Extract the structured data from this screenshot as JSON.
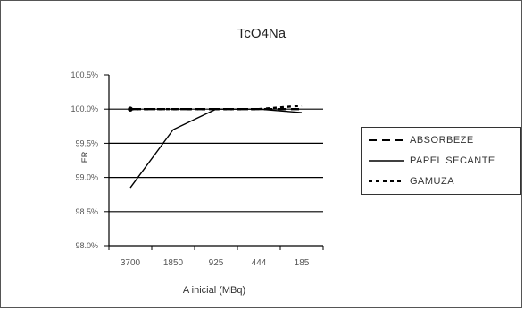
{
  "chart_data": {
    "type": "line",
    "title": "TcO4Na",
    "xlabel": "A inicial (MBq)",
    "ylabel": "ER",
    "categories": [
      "3700",
      "1850",
      "925",
      "444",
      "185"
    ],
    "y_ticks": [
      "100.5%",
      "100.0%",
      "99.5%",
      "99.0%",
      "98.5%",
      "98.0%"
    ],
    "ylim": [
      98.0,
      100.5
    ],
    "grid": true,
    "legend_position": "right",
    "series": [
      {
        "name": "ABSORBEZE",
        "style": "long-dash",
        "color": "#000000",
        "values": [
          100.0,
          100.0,
          100.0,
          100.0,
          100.0
        ]
      },
      {
        "name": "PAPEL SECANTE",
        "style": "solid",
        "color": "#000000",
        "values": [
          98.85,
          99.7,
          100.0,
          100.0,
          99.95
        ]
      },
      {
        "name": "GAMUZA",
        "style": "short-dash",
        "color": "#000000",
        "values": [
          100.0,
          100.0,
          100.0,
          100.0,
          100.05
        ]
      }
    ]
  }
}
